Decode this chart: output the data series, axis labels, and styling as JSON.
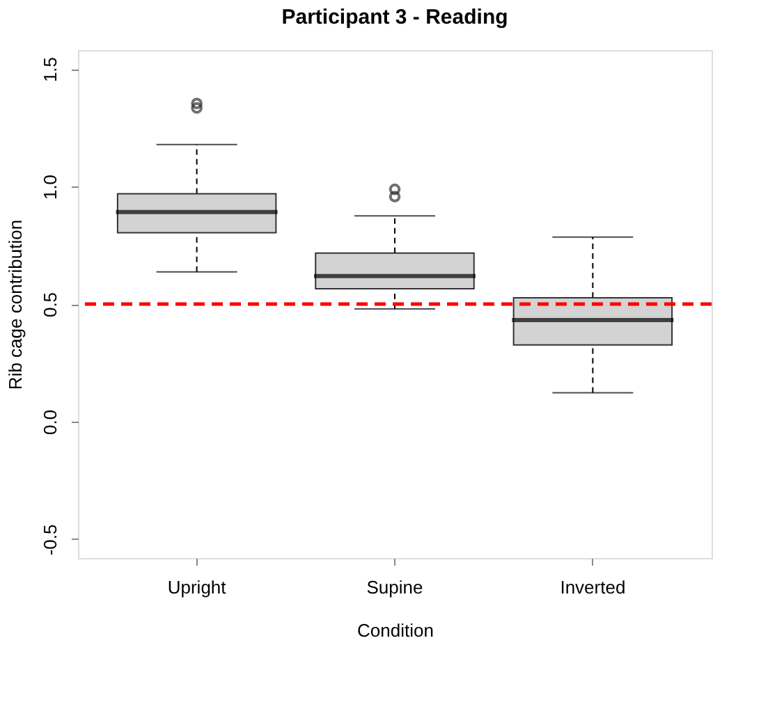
{
  "chart_data": {
    "type": "box",
    "title": "Participant 3 - Reading",
    "xlabel": "Condition",
    "ylabel": "Rib cage contribution",
    "categories": [
      "Upright",
      "Supine",
      "Inverted"
    ],
    "series": [
      {
        "color": "#d3d3d3",
        "boxes": [
          {
            "low": 0.637,
            "q1": 0.803,
            "median": 0.891,
            "q3": 0.969,
            "high": 1.178,
            "outliers": [
              1.353,
              1.334
            ]
          },
          {
            "low": 0.479,
            "q1": 0.565,
            "median": 0.619,
            "q3": 0.717,
            "high": 0.875,
            "outliers": [
              0.988,
              0.957
            ]
          },
          {
            "low": 0.123,
            "q1": 0.326,
            "median": 0.432,
            "q3": 0.527,
            "high": 0.785
          }
        ]
      }
    ],
    "ylim": [
      -0.58,
      1.58
    ],
    "yticks": [
      -0.5,
      {
        "value": 0,
        "label": "0.0"
      },
      0.5,
      {
        "value": 1,
        "label": "1.0"
      },
      1.5
    ],
    "ref_lines": [
      {
        "axis": "y",
        "value": 0.5,
        "color": "#ff0000",
        "line_style": "dashed"
      }
    ],
    "grid": false
  }
}
